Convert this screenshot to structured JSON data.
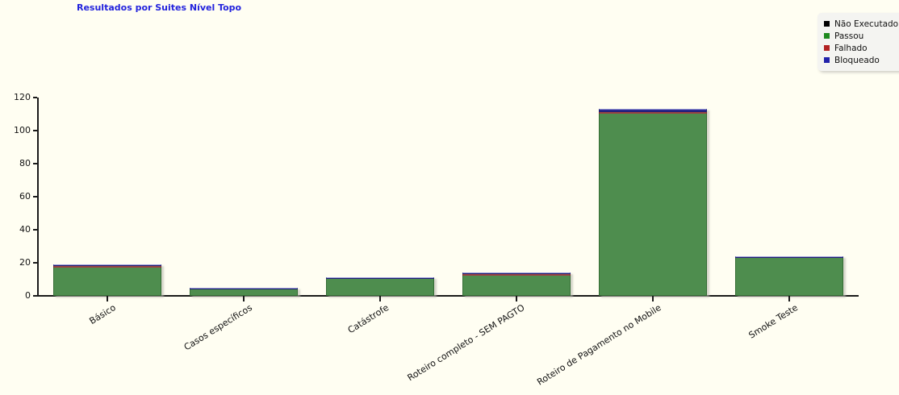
{
  "title": {
    "text": "Resultados por Suites Nível Topo",
    "color": "#2323dd"
  },
  "legend": {
    "items": [
      {
        "label": "Não Executado",
        "color": "#000000"
      },
      {
        "label": "Passou",
        "color": "#1f8a1f"
      },
      {
        "label": "Falhado",
        "color": "#b22222"
      },
      {
        "label": "Bloqueado",
        "color": "#2222aa"
      }
    ]
  },
  "chart_data": {
    "type": "bar",
    "stacked": true,
    "title": "Resultados por Suites Nível Topo",
    "categories": [
      "Básico",
      "Casos específicos",
      "Catástrofe",
      "Roteiro completo - SEM PAGTO",
      "Roteiro de Pagamento no Mobile",
      "Smoke Teste"
    ],
    "series": [
      {
        "name": "Não Executado",
        "color": "#000000",
        "values": [
          0,
          0,
          0,
          0,
          0,
          0
        ]
      },
      {
        "name": "Passou",
        "color": "#4e8d4e",
        "values": [
          17,
          4,
          10,
          12,
          110,
          23
        ]
      },
      {
        "name": "Falhado",
        "color": "#9a4343",
        "values": [
          1,
          0,
          0,
          1,
          1,
          0
        ]
      },
      {
        "name": "Bloqueado",
        "color": "#28288e",
        "values": [
          1,
          1,
          1,
          1,
          2,
          1
        ]
      }
    ],
    "totals": [
      19,
      5,
      11,
      14,
      113,
      24
    ],
    "xlabel": "",
    "ylabel": "",
    "ylim": [
      0,
      120
    ],
    "yticks": [
      0,
      20,
      40,
      60,
      80,
      100,
      120
    ],
    "grid": false,
    "legend_position": "top-right"
  }
}
